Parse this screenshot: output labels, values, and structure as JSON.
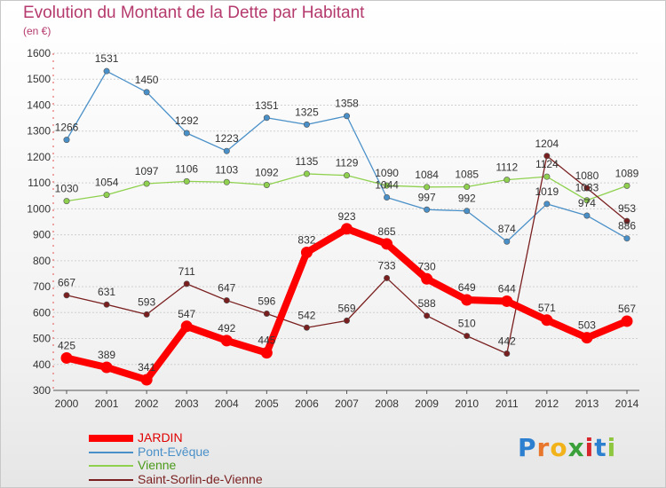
{
  "header": {
    "title": "Evolution du Montant de la Dette par Habitant",
    "subtitle": "(en €)"
  },
  "logo": {
    "text": "Proxiti"
  },
  "chart_data": {
    "type": "line",
    "title": "Evolution du Montant de la Dette par Habitant",
    "subtitle": "(en €)",
    "xlabel": "",
    "ylabel": "",
    "ylim": [
      300,
      1600
    ],
    "yticks": [
      300,
      400,
      500,
      600,
      700,
      800,
      900,
      1000,
      1100,
      1200,
      1300,
      1400,
      1500,
      1600
    ],
    "grid": true,
    "legend_position": "bottom-left",
    "categories": [
      "2000",
      "2001",
      "2002",
      "2003",
      "2004",
      "2005",
      "2006",
      "2007",
      "2008",
      "2009",
      "2010",
      "2011",
      "2012",
      "2013",
      "2014"
    ],
    "series": [
      {
        "name": "JARDIN",
        "color": "#ff0000",
        "values": [
          425,
          389,
          341,
          547,
          492,
          445,
          832,
          923,
          865,
          730,
          649,
          644,
          571,
          503,
          567
        ],
        "labels": [
          "425",
          "389",
          "341",
          "547",
          "492",
          "445",
          "832",
          "923",
          "865",
          "730",
          "649",
          "644",
          "571",
          "503",
          "567"
        ]
      },
      {
        "name": "Pont-Evêque",
        "color": "#4a90c8",
        "values": [
          1266,
          1531,
          1450,
          1292,
          1223,
          1351,
          1325,
          1358,
          1044,
          997,
          992,
          874,
          1019,
          974,
          886
        ],
        "labels": [
          "1266",
          "1531",
          "1450",
          "1292",
          "1223",
          "1351",
          "1325",
          "1358",
          "1044",
          "997",
          "992",
          "874",
          "1019",
          "974",
          "886"
        ]
      },
      {
        "name": "Vienne",
        "color": "#8fd14f",
        "values": [
          1030,
          1054,
          1097,
          1106,
          1103,
          1092,
          1135,
          1129,
          1090,
          1084,
          1085,
          1112,
          1124,
          1033,
          1089
        ],
        "labels": [
          "1030",
          "1054",
          "1097",
          "1106",
          "1103",
          "1092",
          "1135",
          "1129",
          "1090",
          "1084",
          "1085",
          "1112",
          "1124",
          "1033",
          "1089"
        ]
      },
      {
        "name": "Saint-Sorlin-de-Vienne",
        "color": "#7a1f1f",
        "values": [
          667,
          631,
          593,
          711,
          647,
          596,
          542,
          569,
          733,
          588,
          510,
          442,
          1204,
          1080,
          953
        ],
        "labels": [
          "667",
          "631",
          "593",
          "711",
          "647",
          "596",
          "542",
          "569",
          "733",
          "588",
          "510",
          "442",
          "1204",
          "1080",
          "953"
        ]
      }
    ]
  }
}
